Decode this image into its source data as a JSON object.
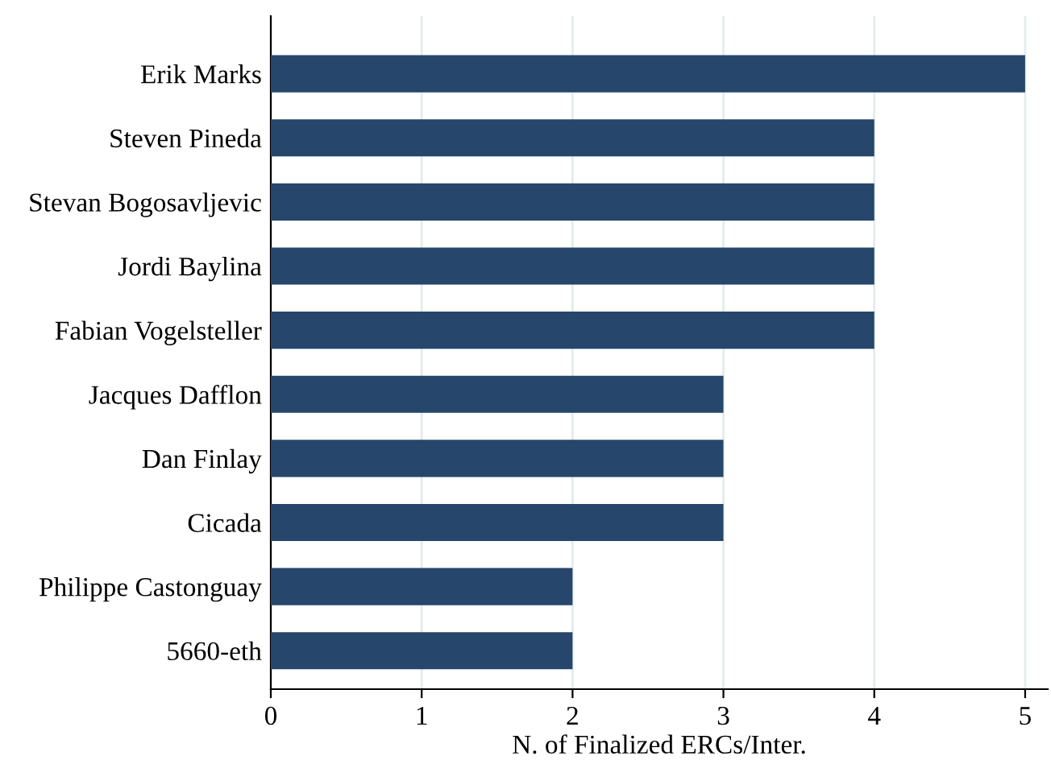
{
  "chart_data": {
    "type": "bar",
    "orientation": "horizontal",
    "xlabel": "N. of Finalized ERCs/Inter.",
    "categories": [
      "Erik Marks",
      "Steven Pineda",
      "Stevan Bogosavljevic",
      "Jordi Baylina",
      "Fabian Vogelsteller",
      "Jacques Dafflon",
      "Dan Finlay",
      "Cicada",
      "Philippe Castonguay",
      "5660-eth"
    ],
    "values": [
      5,
      4,
      4,
      4,
      4,
      3,
      3,
      3,
      2,
      2
    ],
    "color": "#26466b",
    "xlim": [
      0,
      5.15
    ],
    "xticks": [
      0,
      1,
      2,
      3,
      4,
      5
    ],
    "grid": "x"
  }
}
